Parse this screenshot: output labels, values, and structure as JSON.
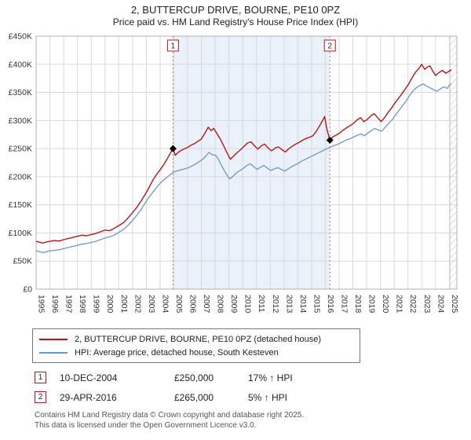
{
  "title": "2, BUTTERCUP DRIVE, BOURNE, PE10 0PZ",
  "subtitle": "Price paid vs. HM Land Registry's House Price Index (HPI)",
  "colors": {
    "property_line": "#b01818",
    "hpi_line": "#6d96c4",
    "sale_line": "#d46a6a",
    "shade": "#eaf1fa",
    "grid": "#d9d9d9",
    "plot_border": "#b0b0b0",
    "hatch": "#b9b9b9",
    "axis_text": "#333333"
  },
  "chart_data": {
    "type": "line",
    "title": "2, BUTTERCUP DRIVE, BOURNE, PE10 0PZ",
    "subtitle": "Price paid vs. HM Land Registry's House Price Index (HPI)",
    "xlabel": "",
    "ylabel": "",
    "xlim": [
      1995,
      2025.55
    ],
    "ylim": [
      0,
      450000
    ],
    "grid": true,
    "legend_position": "bottom",
    "y_ticks": [
      [
        0,
        "£0"
      ],
      [
        50000,
        "£50K"
      ],
      [
        100000,
        "£100K"
      ],
      [
        150000,
        "£150K"
      ],
      [
        200000,
        "£200K"
      ],
      [
        250000,
        "£250K"
      ],
      [
        300000,
        "£300K"
      ],
      [
        350000,
        "£350K"
      ],
      [
        400000,
        "£400K"
      ],
      [
        450000,
        "£450K"
      ]
    ],
    "x_ticks": [
      1995,
      1996,
      1997,
      1998,
      1999,
      2000,
      2001,
      2002,
      2003,
      2004,
      2005,
      2006,
      2007,
      2008,
      2009,
      2010,
      2011,
      2012,
      2013,
      2014,
      2015,
      2016,
      2017,
      2018,
      2019,
      2020,
      2021,
      2022,
      2023,
      2024,
      2025
    ],
    "shaded_region": {
      "from": 2004.94,
      "to": 2016.33
    },
    "hatched_region": {
      "from": 2025.05,
      "to": 2025.55
    },
    "sales": [
      {
        "label": "1",
        "x": 2004.94,
        "y": 250000,
        "date": "10-DEC-2004",
        "price": "£250,000",
        "hpi_change": "17% ↑ HPI"
      },
      {
        "label": "2",
        "x": 2016.33,
        "y": 265000,
        "date": "29-APR-2016",
        "price": "£265,000",
        "hpi_change": "5% ↑ HPI"
      }
    ],
    "series": [
      {
        "name": "2, BUTTERCUP DRIVE, BOURNE, PE10 0PZ (detached house)",
        "color": "#b01818",
        "points": [
          [
            1995.0,
            85000
          ],
          [
            1995.25,
            83500
          ],
          [
            1995.5,
            82000
          ],
          [
            1995.75,
            84000
          ],
          [
            1996.0,
            85000
          ],
          [
            1996.33,
            86500
          ],
          [
            1996.66,
            85500
          ],
          [
            1997.0,
            88000
          ],
          [
            1997.33,
            90000
          ],
          [
            1997.66,
            92000
          ],
          [
            1998.0,
            94000
          ],
          [
            1998.33,
            96000
          ],
          [
            1998.66,
            95000
          ],
          [
            1999.0,
            97000
          ],
          [
            1999.33,
            99000
          ],
          [
            1999.66,
            102000
          ],
          [
            2000.0,
            105000
          ],
          [
            2000.33,
            104000
          ],
          [
            2000.66,
            108000
          ],
          [
            2001.0,
            113000
          ],
          [
            2001.33,
            118000
          ],
          [
            2001.66,
            126000
          ],
          [
            2002.0,
            136000
          ],
          [
            2002.33,
            146000
          ],
          [
            2002.66,
            158000
          ],
          [
            2003.0,
            172000
          ],
          [
            2003.25,
            183000
          ],
          [
            2003.5,
            195000
          ],
          [
            2003.75,
            204000
          ],
          [
            2004.0,
            212000
          ],
          [
            2004.25,
            221000
          ],
          [
            2004.5,
            231000
          ],
          [
            2004.75,
            242000
          ],
          [
            2004.94,
            250000
          ],
          [
            2005.1,
            238000
          ],
          [
            2005.3,
            243000
          ],
          [
            2005.55,
            247000
          ],
          [
            2005.8,
            250000
          ],
          [
            2006.0,
            252000
          ],
          [
            2006.25,
            256000
          ],
          [
            2006.5,
            259000
          ],
          [
            2006.75,
            263000
          ],
          [
            2007.0,
            267000
          ],
          [
            2007.25,
            277000
          ],
          [
            2007.5,
            288000
          ],
          [
            2007.7,
            282000
          ],
          [
            2007.9,
            286000
          ],
          [
            2008.1,
            278000
          ],
          [
            2008.35,
            268000
          ],
          [
            2008.6,
            256000
          ],
          [
            2008.85,
            243000
          ],
          [
            2009.1,
            231000
          ],
          [
            2009.35,
            237000
          ],
          [
            2009.6,
            243000
          ],
          [
            2009.85,
            248000
          ],
          [
            2010.1,
            254000
          ],
          [
            2010.35,
            260000
          ],
          [
            2010.6,
            262000
          ],
          [
            2010.85,
            255000
          ],
          [
            2011.1,
            249000
          ],
          [
            2011.35,
            255000
          ],
          [
            2011.6,
            258000
          ],
          [
            2011.85,
            251000
          ],
          [
            2012.1,
            246000
          ],
          [
            2012.35,
            251000
          ],
          [
            2012.6,
            253000
          ],
          [
            2012.85,
            248000
          ],
          [
            2013.1,
            244000
          ],
          [
            2013.35,
            250000
          ],
          [
            2013.6,
            254000
          ],
          [
            2013.85,
            258000
          ],
          [
            2014.1,
            261000
          ],
          [
            2014.35,
            265000
          ],
          [
            2014.6,
            268000
          ],
          [
            2014.85,
            270000
          ],
          [
            2015.1,
            273000
          ],
          [
            2015.35,
            281000
          ],
          [
            2015.6,
            291000
          ],
          [
            2015.85,
            302000
          ],
          [
            2015.95,
            307000
          ],
          [
            2016.1,
            286000
          ],
          [
            2016.33,
            265000
          ],
          [
            2016.55,
            271000
          ],
          [
            2016.8,
            274000
          ],
          [
            2017.05,
            278000
          ],
          [
            2017.3,
            283000
          ],
          [
            2017.55,
            287000
          ],
          [
            2017.8,
            291000
          ],
          [
            2018.05,
            295000
          ],
          [
            2018.3,
            301000
          ],
          [
            2018.55,
            305000
          ],
          [
            2018.8,
            298000
          ],
          [
            2019.05,
            302000
          ],
          [
            2019.3,
            308000
          ],
          [
            2019.55,
            312000
          ],
          [
            2019.8,
            305000
          ],
          [
            2020.05,
            298000
          ],
          [
            2020.3,
            305000
          ],
          [
            2020.55,
            314000
          ],
          [
            2020.8,
            322000
          ],
          [
            2021.05,
            331000
          ],
          [
            2021.3,
            339000
          ],
          [
            2021.55,
            347000
          ],
          [
            2021.8,
            356000
          ],
          [
            2022.05,
            365000
          ],
          [
            2022.3,
            376000
          ],
          [
            2022.55,
            386000
          ],
          [
            2022.8,
            393000
          ],
          [
            2023.0,
            400000
          ],
          [
            2023.2,
            391000
          ],
          [
            2023.4,
            395000
          ],
          [
            2023.6,
            397000
          ],
          [
            2023.8,
            388000
          ],
          [
            2024.0,
            380000
          ],
          [
            2024.25,
            385000
          ],
          [
            2024.5,
            389000
          ],
          [
            2024.75,
            384000
          ],
          [
            2025.0,
            388000
          ],
          [
            2025.15,
            390000
          ]
        ]
      },
      {
        "name": "HPI: Average price, detached house, South Kesteven",
        "color": "#6d96c4",
        "points": [
          [
            1995.0,
            68000
          ],
          [
            1995.25,
            66500
          ],
          [
            1995.5,
            65000
          ],
          [
            1995.75,
            66500
          ],
          [
            1996.0,
            68000
          ],
          [
            1996.33,
            69000
          ],
          [
            1996.66,
            70000
          ],
          [
            1997.0,
            72000
          ],
          [
            1997.33,
            74000
          ],
          [
            1997.66,
            76000
          ],
          [
            1998.0,
            78000
          ],
          [
            1998.33,
            80000
          ],
          [
            1998.66,
            81000
          ],
          [
            1999.0,
            83000
          ],
          [
            1999.33,
            85000
          ],
          [
            1999.66,
            88000
          ],
          [
            2000.0,
            91000
          ],
          [
            2000.33,
            93000
          ],
          [
            2000.66,
            96000
          ],
          [
            2001.0,
            101000
          ],
          [
            2001.33,
            106000
          ],
          [
            2001.66,
            113000
          ],
          [
            2002.0,
            122000
          ],
          [
            2002.33,
            132000
          ],
          [
            2002.66,
            143000
          ],
          [
            2003.0,
            157000
          ],
          [
            2003.25,
            165000
          ],
          [
            2003.5,
            173000
          ],
          [
            2003.75,
            181000
          ],
          [
            2004.0,
            188000
          ],
          [
            2004.25,
            194000
          ],
          [
            2004.5,
            199000
          ],
          [
            2004.75,
            204000
          ],
          [
            2004.94,
            208000
          ],
          [
            2005.2,
            210000
          ],
          [
            2005.5,
            212000
          ],
          [
            2005.8,
            214000
          ],
          [
            2006.05,
            216000
          ],
          [
            2006.3,
            219000
          ],
          [
            2006.55,
            222000
          ],
          [
            2006.8,
            226000
          ],
          [
            2007.05,
            230000
          ],
          [
            2007.3,
            236000
          ],
          [
            2007.55,
            243000
          ],
          [
            2007.8,
            239000
          ],
          [
            2008.05,
            238000
          ],
          [
            2008.3,
            228000
          ],
          [
            2008.55,
            216000
          ],
          [
            2008.8,
            205000
          ],
          [
            2009.05,
            196000
          ],
          [
            2009.3,
            201000
          ],
          [
            2009.55,
            207000
          ],
          [
            2009.8,
            211000
          ],
          [
            2010.05,
            215000
          ],
          [
            2010.3,
            220000
          ],
          [
            2010.55,
            223000
          ],
          [
            2010.8,
            218000
          ],
          [
            2011.05,
            213000
          ],
          [
            2011.3,
            217000
          ],
          [
            2011.55,
            220000
          ],
          [
            2011.8,
            215000
          ],
          [
            2012.05,
            211000
          ],
          [
            2012.3,
            214000
          ],
          [
            2012.55,
            216000
          ],
          [
            2012.8,
            213000
          ],
          [
            2013.05,
            210000
          ],
          [
            2013.3,
            214000
          ],
          [
            2013.55,
            218000
          ],
          [
            2013.8,
            221000
          ],
          [
            2014.05,
            224000
          ],
          [
            2014.3,
            228000
          ],
          [
            2014.55,
            231000
          ],
          [
            2014.8,
            234000
          ],
          [
            2015.05,
            237000
          ],
          [
            2015.3,
            240000
          ],
          [
            2015.55,
            243000
          ],
          [
            2015.8,
            246000
          ],
          [
            2016.05,
            249000
          ],
          [
            2016.33,
            252000
          ],
          [
            2016.6,
            255000
          ],
          [
            2016.85,
            257000
          ],
          [
            2017.1,
            260000
          ],
          [
            2017.35,
            263000
          ],
          [
            2017.6,
            266000
          ],
          [
            2017.85,
            268000
          ],
          [
            2018.1,
            271000
          ],
          [
            2018.35,
            274000
          ],
          [
            2018.6,
            276000
          ],
          [
            2018.85,
            273000
          ],
          [
            2019.1,
            278000
          ],
          [
            2019.35,
            282000
          ],
          [
            2019.6,
            286000
          ],
          [
            2019.85,
            283000
          ],
          [
            2020.1,
            281000
          ],
          [
            2020.35,
            288000
          ],
          [
            2020.6,
            295000
          ],
          [
            2020.85,
            301000
          ],
          [
            2021.1,
            310000
          ],
          [
            2021.35,
            318000
          ],
          [
            2021.6,
            326000
          ],
          [
            2021.85,
            334000
          ],
          [
            2022.1,
            344000
          ],
          [
            2022.35,
            352000
          ],
          [
            2022.6,
            358000
          ],
          [
            2022.85,
            362000
          ],
          [
            2023.1,
            365000
          ],
          [
            2023.35,
            361000
          ],
          [
            2023.6,
            358000
          ],
          [
            2023.85,
            355000
          ],
          [
            2024.1,
            352000
          ],
          [
            2024.35,
            356000
          ],
          [
            2024.6,
            360000
          ],
          [
            2024.85,
            357000
          ],
          [
            2025.0,
            363000
          ],
          [
            2025.15,
            365000
          ]
        ]
      }
    ]
  },
  "legend": [
    {
      "label": "2, BUTTERCUP DRIVE, BOURNE, PE10 0PZ (detached house)"
    },
    {
      "label": "HPI: Average price, detached house, South Kesteven"
    }
  ],
  "sales_table": [
    {
      "num": "1",
      "date": "10-DEC-2004",
      "price": "£250,000",
      "hpi_change": "17% ↑ HPI"
    },
    {
      "num": "2",
      "date": "29-APR-2016",
      "price": "£265,000",
      "hpi_change": "5% ↑ HPI"
    }
  ],
  "footer": {
    "line1": "Contains HM Land Registry data © Crown copyright and database right 2025.",
    "line2": "This data is licensed under the Open Government Licence v3.0."
  }
}
